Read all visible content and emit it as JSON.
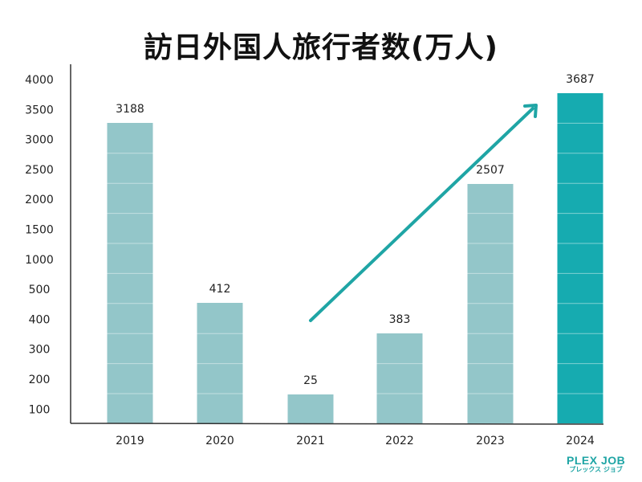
{
  "chart_data": {
    "type": "bar",
    "title": "訪日外国人旅行者数(万人)",
    "categories": [
      "2019",
      "2020",
      "2021",
      "2022",
      "2023",
      "2024"
    ],
    "values": [
      3188,
      412,
      25,
      383,
      2507,
      3687
    ],
    "y_ticks": [
      "4000",
      "3500",
      "3000",
      "2500",
      "2000",
      "1500",
      "1000",
      "500",
      "400",
      "300",
      "200",
      "100"
    ],
    "y_scale": "non-linear (broken axis)",
    "grid": false,
    "highlight_category": "2024",
    "annotation": "upward trend arrow from 2021 to 2024",
    "colors": {
      "bar": "#93c6c9",
      "highlight": "#16abb0",
      "arrow": "#1fa5a5"
    }
  },
  "logo": {
    "line1": "PLEX JOB",
    "line2": "プレックス ジョブ"
  }
}
